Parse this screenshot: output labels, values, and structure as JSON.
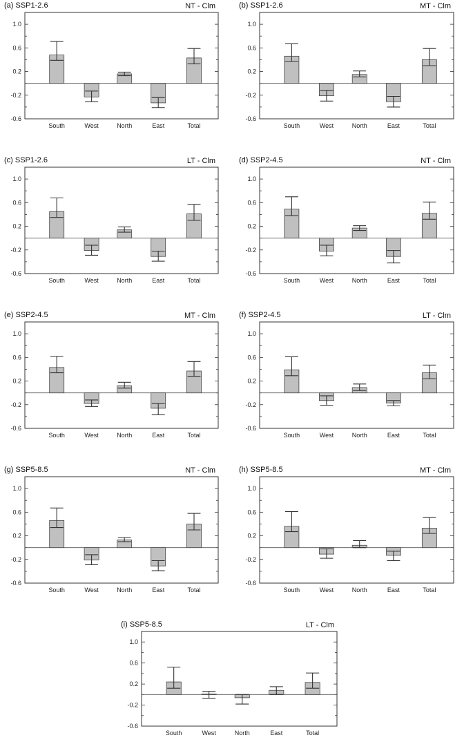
{
  "chart_data": [
    {
      "type": "bar",
      "title": "(a) SSP1-2.6",
      "label_right": "NT - Clm",
      "categories": [
        "South",
        "West",
        "North",
        "East",
        "Total"
      ],
      "values": [
        0.48,
        -0.23,
        0.16,
        -0.33,
        0.43
      ],
      "err_low": [
        0.39,
        -0.31,
        0.13,
        -0.41,
        0.33
      ],
      "err_high": [
        0.71,
        -0.13,
        0.19,
        -0.24,
        0.59
      ],
      "ylim": [
        -0.6,
        1.2
      ],
      "yticks": [
        "1.0",
        "0.6",
        "0.2",
        "-0.2",
        "-0.6"
      ]
    },
    {
      "type": "bar",
      "title": "(b) SSP1-2.6",
      "label_right": "MT - Clm",
      "categories": [
        "South",
        "West",
        "North",
        "East",
        "Total"
      ],
      "values": [
        0.46,
        -0.21,
        0.15,
        -0.31,
        0.4
      ],
      "err_low": [
        0.37,
        -0.3,
        0.11,
        -0.4,
        0.3
      ],
      "err_high": [
        0.67,
        -0.12,
        0.21,
        -0.22,
        0.59
      ],
      "ylim": [
        -0.6,
        1.2
      ],
      "yticks": [
        "1.0",
        "0.6",
        "0.2",
        "-0.2",
        "-0.6"
      ]
    },
    {
      "type": "bar",
      "title": "(c) SSP1-2.6",
      "label_right": "LT - Clm",
      "categories": [
        "South",
        "West",
        "North",
        "East",
        "Total"
      ],
      "values": [
        0.45,
        -0.21,
        0.14,
        -0.31,
        0.41
      ],
      "err_low": [
        0.35,
        -0.29,
        0.1,
        -0.39,
        0.3
      ],
      "err_high": [
        0.68,
        -0.12,
        0.19,
        -0.22,
        0.57
      ],
      "ylim": [
        -0.6,
        1.2
      ],
      "yticks": [
        "1.0",
        "0.6",
        "0.2",
        "-0.2",
        "-0.6"
      ]
    },
    {
      "type": "bar",
      "title": "(d) SSP2-4.5",
      "label_right": "NT - Clm",
      "categories": [
        "South",
        "West",
        "North",
        "East",
        "Total"
      ],
      "values": [
        0.49,
        -0.22,
        0.17,
        -0.31,
        0.42
      ],
      "err_low": [
        0.38,
        -0.3,
        0.13,
        -0.42,
        0.32
      ],
      "err_high": [
        0.7,
        -0.12,
        0.21,
        -0.21,
        0.61
      ],
      "ylim": [
        -0.6,
        1.2
      ],
      "yticks": [
        "1.0",
        "0.6",
        "0.2",
        "-0.2",
        "-0.6"
      ]
    },
    {
      "type": "bar",
      "title": "(e) SSP2-4.5",
      "label_right": "MT - Clm",
      "categories": [
        "South",
        "West",
        "North",
        "East",
        "Total"
      ],
      "values": [
        0.43,
        -0.18,
        0.12,
        -0.26,
        0.37
      ],
      "err_low": [
        0.34,
        -0.23,
        0.08,
        -0.37,
        0.28
      ],
      "err_high": [
        0.62,
        -0.12,
        0.18,
        -0.18,
        0.53
      ],
      "ylim": [
        -0.6,
        1.2
      ],
      "yticks": [
        "1.0",
        "0.6",
        "0.2",
        "-0.2",
        "-0.6"
      ]
    },
    {
      "type": "bar",
      "title": "(f) SSP2-4.5",
      "label_right": "LT - Clm",
      "categories": [
        "South",
        "West",
        "North",
        "East",
        "Total"
      ],
      "values": [
        0.39,
        -0.13,
        0.09,
        -0.17,
        0.34
      ],
      "err_low": [
        0.29,
        -0.21,
        0.04,
        -0.22,
        0.24
      ],
      "err_high": [
        0.61,
        -0.05,
        0.15,
        -0.13,
        0.47
      ],
      "ylim": [
        -0.6,
        1.2
      ],
      "yticks": [
        "1.0",
        "0.6",
        "0.2",
        "-0.2",
        "-0.6"
      ]
    },
    {
      "type": "bar",
      "title": "(g) SSP5-8.5",
      "label_right": "NT - Clm",
      "categories": [
        "South",
        "West",
        "North",
        "East",
        "Total"
      ],
      "values": [
        0.46,
        -0.21,
        0.13,
        -0.31,
        0.4
      ],
      "err_low": [
        0.34,
        -0.29,
        0.1,
        -0.39,
        0.3
      ],
      "err_high": [
        0.67,
        -0.12,
        0.17,
        -0.22,
        0.58
      ],
      "ylim": [
        -0.6,
        1.2
      ],
      "yticks": [
        "1.0",
        "0.6",
        "0.2",
        "-0.2",
        "-0.6"
      ]
    },
    {
      "type": "bar",
      "title": "(h) SSP5-8.5",
      "label_right": "MT - Clm",
      "categories": [
        "South",
        "West",
        "North",
        "East",
        "Total"
      ],
      "values": [
        0.36,
        -0.11,
        0.04,
        -0.13,
        0.33
      ],
      "err_low": [
        0.27,
        -0.18,
        0.0,
        -0.22,
        0.24
      ],
      "err_high": [
        0.61,
        -0.02,
        0.12,
        -0.06,
        0.51
      ],
      "ylim": [
        -0.6,
        1.2
      ],
      "yticks": [
        "1.0",
        "0.6",
        "0.2",
        "-0.2",
        "-0.6"
      ]
    },
    {
      "type": "bar",
      "title": "(i) SSP5-8.5",
      "label_right": "LT - Clm",
      "categories": [
        "South",
        "West",
        "North",
        "East",
        "Total"
      ],
      "values": [
        0.24,
        0.01,
        -0.06,
        0.08,
        0.23
      ],
      "err_low": [
        0.12,
        -0.07,
        -0.18,
        0.0,
        0.12
      ],
      "err_high": [
        0.52,
        0.06,
        -0.0,
        0.15,
        0.41
      ],
      "ylim": [
        -0.6,
        1.2
      ],
      "yticks": [
        "1.0",
        "0.6",
        "0.2",
        "-0.2",
        "-0.6"
      ]
    }
  ]
}
